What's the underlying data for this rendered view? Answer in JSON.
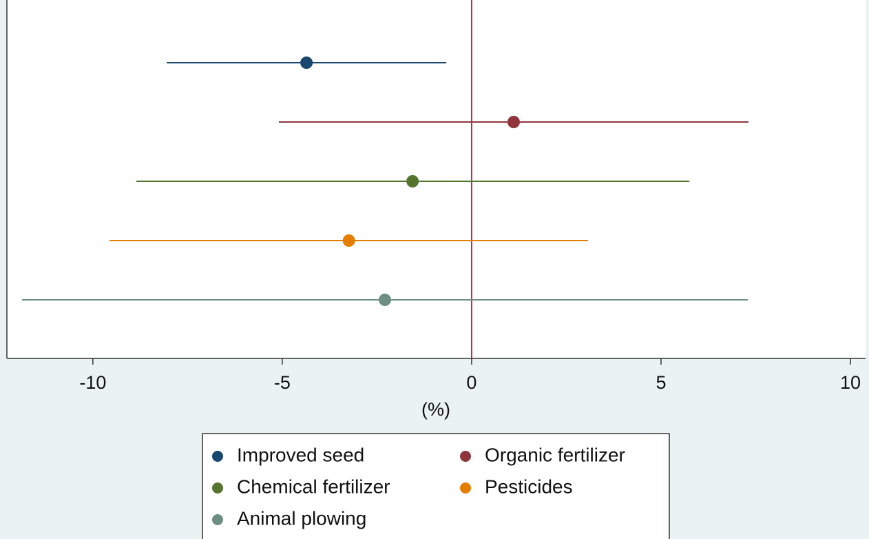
{
  "chart_data": {
    "type": "coefplot",
    "x_label": "(%)",
    "xlim": [
      -12.27,
      10.4
    ],
    "xticks": [
      -10,
      -5,
      0,
      5,
      10
    ],
    "reference_line": 0,
    "reference_color": "#b0305a",
    "series": [
      {
        "name": "Improved seed",
        "color": "#1a476f",
        "value": -4.36,
        "ci": [
          -8.05,
          -0.67
        ]
      },
      {
        "name": "Organic fertilizer",
        "color": "#90353b",
        "value": 1.11,
        "ci": [
          -5.09,
          7.31
        ]
      },
      {
        "name": "Chemical fertilizer",
        "color": "#55752f",
        "value": -1.56,
        "ci": [
          -8.85,
          5.75
        ]
      },
      {
        "name": "Pesticides",
        "color": "#e37e00",
        "value": -3.24,
        "ci": [
          -9.56,
          3.07
        ]
      },
      {
        "name": "Animal plowing",
        "color": "#6e8e84",
        "value": -2.29,
        "ci": [
          -11.87,
          7.29
        ]
      }
    ]
  }
}
